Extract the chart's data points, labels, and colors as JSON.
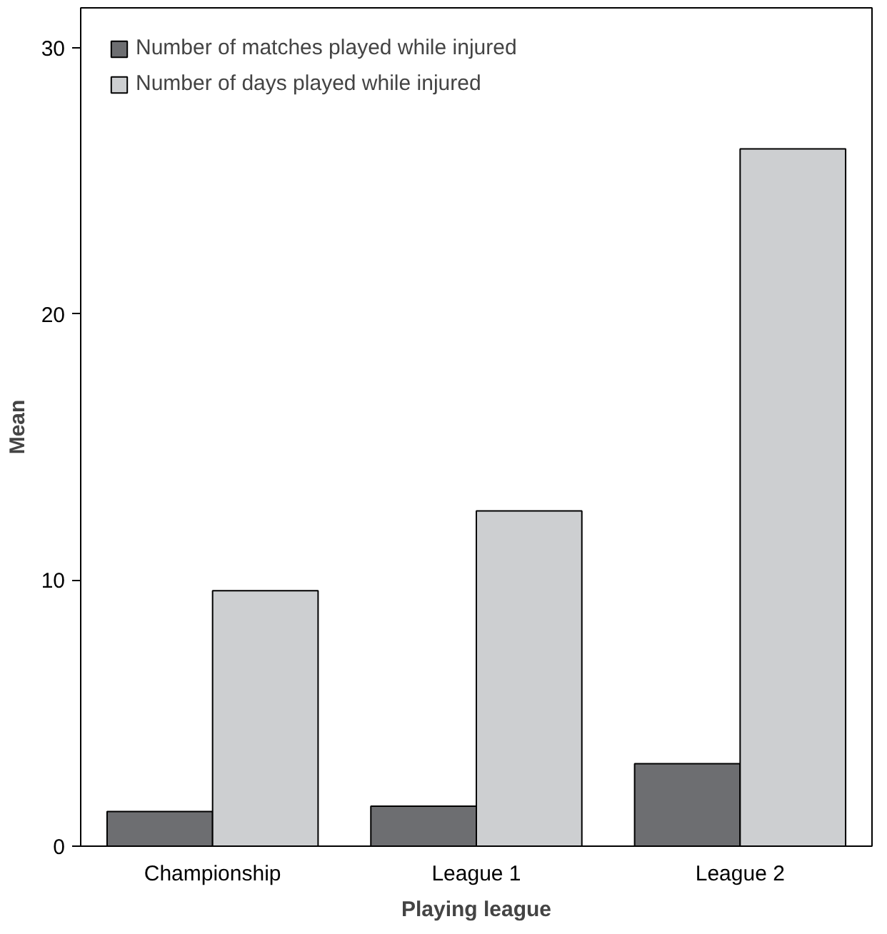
{
  "chart_data": {
    "type": "bar",
    "xlabel": "Playing league",
    "ylabel": "Mean",
    "categories": [
      "Championship",
      "League 1",
      "League 2"
    ],
    "series": [
      {
        "name": "Number of matches played while injured",
        "color": "#6d6e71",
        "values": [
          1.3,
          1.5,
          3.1
        ]
      },
      {
        "name": "Number of days played while injured",
        "color": "#cdcfd1",
        "values": [
          9.6,
          12.6,
          26.2
        ]
      }
    ],
    "ylim": [
      0,
      31.5
    ],
    "yticks": [
      0,
      10,
      20,
      30
    ],
    "grid": false,
    "legend": "top left"
  }
}
